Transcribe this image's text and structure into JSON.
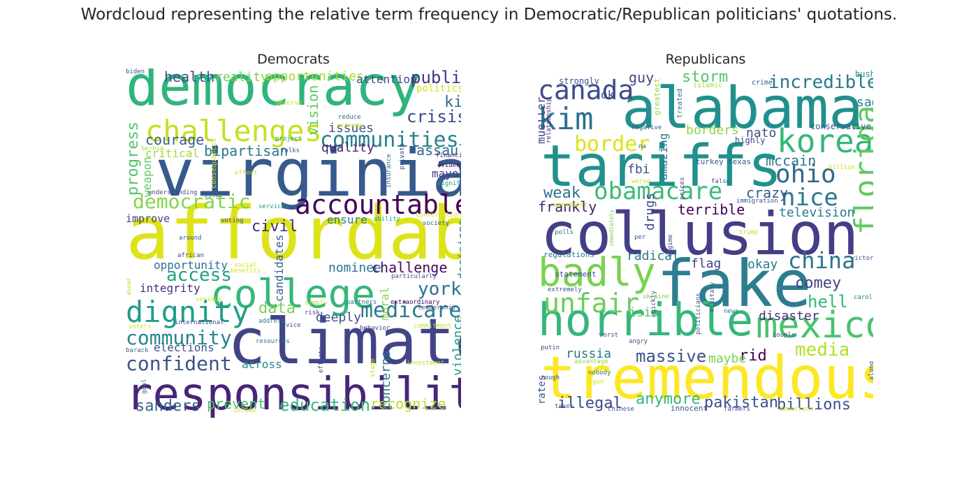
{
  "figure": {
    "title": "Wordcloud representing the relative term frequency in Democratic/Republican politicians' quotations."
  },
  "clouds": [
    {
      "title": "Democrats",
      "words": [
        {
          "text": "democracy",
          "color": "#2fb47c"
        },
        {
          "text": "virginia",
          "color": "#375a8c"
        },
        {
          "text": "affordable",
          "color": "#dde318"
        },
        {
          "text": "climate",
          "color": "#414487"
        },
        {
          "text": "responsibility",
          "color": "#482576"
        },
        {
          "text": "college",
          "color": "#35b779"
        },
        {
          "text": "challenges",
          "color": "#c5e021"
        },
        {
          "text": "accountable",
          "color": "#440154"
        },
        {
          "text": "dignity",
          "color": "#1f9e89"
        },
        {
          "text": "communities",
          "color": "#26828e"
        },
        {
          "text": "medicare",
          "color": "#2a788e"
        },
        {
          "text": "community",
          "color": "#25858e"
        },
        {
          "text": "confident",
          "color": "#3b528b"
        },
        {
          "text": "democratic",
          "color": "#84d44b"
        },
        {
          "text": "education",
          "color": "#3aba76"
        },
        {
          "text": "sanders",
          "color": "#33638d"
        },
        {
          "text": "access",
          "color": "#1fa287"
        },
        {
          "text": "york",
          "color": "#2c718e"
        },
        {
          "text": "crisis",
          "color": "#3e4989"
        },
        {
          "text": "public",
          "color": "#46337e"
        },
        {
          "text": "kids",
          "color": "#2e6e8e"
        },
        {
          "text": "assault",
          "color": "#31688e"
        },
        {
          "text": "courage",
          "color": "#355f8d"
        },
        {
          "text": "health",
          "color": "#3e4a89"
        },
        {
          "text": "bipartisan",
          "color": "#29798e"
        },
        {
          "text": "challenge",
          "color": "#450559"
        },
        {
          "text": "civil",
          "color": "#472c7a"
        },
        {
          "text": "data",
          "color": "#7ad151"
        },
        {
          "text": "prevent",
          "color": "#4ac16d"
        },
        {
          "text": "recognize",
          "color": "#b5de2b"
        },
        {
          "text": "opportunities",
          "color": "#a0da39"
        },
        {
          "text": "progress",
          "color": "#52c569"
        },
        {
          "text": "vision",
          "color": "#5ec962"
        },
        {
          "text": "reality",
          "color": "#73d056"
        },
        {
          "text": "attention",
          "color": "#3f4788"
        },
        {
          "text": "politics",
          "color": "#d2e21b"
        },
        {
          "text": "issues",
          "color": "#3b528b"
        },
        {
          "text": "quality",
          "color": "#481b6d"
        },
        {
          "text": "critical",
          "color": "#a2da37"
        },
        {
          "text": "mayor",
          "color": "#433e85"
        },
        {
          "text": "improve",
          "color": "#404387"
        },
        {
          "text": "opportunity",
          "color": "#2d708e"
        },
        {
          "text": "integrity",
          "color": "#472d7b"
        },
        {
          "text": "nominee",
          "color": "#2a768e"
        },
        {
          "text": "deeply",
          "color": "#3b528b"
        },
        {
          "text": "elections",
          "color": "#3a538b"
        },
        {
          "text": "across",
          "color": "#238a8d"
        },
        {
          "text": "ensure",
          "color": "#297a8e"
        },
        {
          "text": "decisions",
          "color": "#2c728e"
        },
        {
          "text": "violence",
          "color": "#1f988b"
        },
        {
          "text": "concerns",
          "color": "#2b758e"
        },
        {
          "text": "candidates",
          "color": "#355e8d"
        },
        {
          "text": "moral",
          "color": "#86d549"
        },
        {
          "text": "weapon",
          "color": "#5cc863"
        },
        {
          "text": "biden",
          "color": "#3b528b"
        },
        {
          "text": "deserve",
          "color": "#c8e020"
        },
        {
          "text": "reduce",
          "color": "#31688e"
        },
        {
          "text": "economy",
          "color": "#ccdf1a"
        },
        {
          "text": "consequences",
          "color": "#c8e020"
        },
        {
          "text": "bernie",
          "color": "#b0dd2f"
        },
        {
          "text": "project",
          "color": "#1f9e89"
        },
        {
          "text": "folks",
          "color": "#3b528b"
        },
        {
          "text": "insurance",
          "color": "#2c718e"
        },
        {
          "text": "private",
          "color": "#3f4889"
        },
        {
          "text": "financial",
          "color": "#472f7d"
        },
        {
          "text": "evidence",
          "color": "#440154"
        },
        {
          "text": "significant",
          "color": "#1f9e89"
        },
        {
          "text": "understanding",
          "color": "#3e4c8a"
        },
        {
          "text": "issue",
          "color": "#355f8d"
        },
        {
          "text": "effort",
          "color": "#c2df23"
        },
        {
          "text": "services",
          "color": "#1e9c89"
        },
        {
          "text": "voting",
          "color": "#3f4889"
        },
        {
          "text": "ability",
          "color": "#1fa088"
        },
        {
          "text": "conversation",
          "color": "#dae319"
        },
        {
          "text": "society",
          "color": "#365c8d"
        },
        {
          "text": "around",
          "color": "#38598c"
        },
        {
          "text": "african",
          "color": "#3e4a89"
        },
        {
          "text": "social",
          "color": "#c8e020"
        },
        {
          "text": "benefits",
          "color": "#d2e21b"
        },
        {
          "text": "particularly",
          "color": "#3b528b"
        },
        {
          "text": "ahead",
          "color": "#c2df23"
        },
        {
          "text": "serious",
          "color": "#c8e020"
        },
        {
          "text": "simply",
          "color": "#b5de2b"
        },
        {
          "text": "partners",
          "color": "#2c718e"
        },
        {
          "text": "extraordinary",
          "color": "#440154"
        },
        {
          "text": "risk",
          "color": "#3e4a89"
        },
        {
          "text": "international",
          "color": "#3e4a89"
        },
        {
          "text": "address",
          "color": "#2a788e"
        },
        {
          "text": "behavior",
          "color": "#404387"
        },
        {
          "text": "leadership",
          "color": "#3a538b"
        },
        {
          "text": "commitment",
          "color": "#c2df23"
        },
        {
          "text": "voters",
          "color": "#dde318"
        },
        {
          "text": "resources",
          "color": "#2d708e"
        },
        {
          "text": "vice",
          "color": "#3b528b"
        },
        {
          "text": "barack",
          "color": "#31688e"
        },
        {
          "text": "investment",
          "color": "#c2df23"
        },
        {
          "text": "efforts",
          "color": "#3e4a89"
        },
        {
          "text": "stage",
          "color": "#c8e020"
        },
        {
          "text": "goal",
          "color": "#2a788e"
        },
        {
          "text": "income",
          "color": "#c2df23"
        }
      ]
    },
    {
      "title": "Republicans",
      "words": [
        {
          "text": "alabama",
          "color": "#21908d"
        },
        {
          "text": "tariffs",
          "color": "#21918c"
        },
        {
          "text": "collusion",
          "color": "#433e85"
        },
        {
          "text": "fake",
          "color": "#2c7e8e"
        },
        {
          "text": "tremendous",
          "color": "#fde725"
        },
        {
          "text": "horrible",
          "color": "#35b779"
        },
        {
          "text": "mexico",
          "color": "#4ac16d"
        },
        {
          "text": "kim",
          "color": "#2c718e"
        },
        {
          "text": "korea",
          "color": "#35b779"
        },
        {
          "text": "florida",
          "color": "#5ec962"
        },
        {
          "text": "badly",
          "color": "#7ad151"
        },
        {
          "text": "canada",
          "color": "#3e4a89"
        },
        {
          "text": "obamacare",
          "color": "#3bbb75"
        },
        {
          "text": "china",
          "color": "#2c728e"
        },
        {
          "text": "ohio",
          "color": "#31688e"
        },
        {
          "text": "nice",
          "color": "#2a788e"
        },
        {
          "text": "unfair",
          "color": "#6ccd5a"
        },
        {
          "text": "border",
          "color": "#dde318"
        },
        {
          "text": "incredible",
          "color": "#2a788e"
        },
        {
          "text": "media",
          "color": "#b5de2b"
        },
        {
          "text": "massive",
          "color": "#3b528b"
        },
        {
          "text": "illegal",
          "color": "#3e4989"
        },
        {
          "text": "anymore",
          "color": "#35b779"
        },
        {
          "text": "pakistan",
          "color": "#3b528b"
        },
        {
          "text": "billions",
          "color": "#3b528b"
        },
        {
          "text": "comey",
          "color": "#404387"
        },
        {
          "text": "hell",
          "color": "#35b779"
        },
        {
          "text": "weak",
          "color": "#2c728e"
        },
        {
          "text": "frankly",
          "color": "#481b6d"
        },
        {
          "text": "terrible",
          "color": "#440154"
        },
        {
          "text": "crazy",
          "color": "#38598c"
        },
        {
          "text": "storm",
          "color": "#52c569"
        },
        {
          "text": "guy",
          "color": "#3e4a89"
        },
        {
          "text": "borders",
          "color": "#8fd744"
        },
        {
          "text": "nato",
          "color": "#3b528b"
        },
        {
          "text": "mccain",
          "color": "#2a788e"
        },
        {
          "text": "television",
          "color": "#2a788e"
        },
        {
          "text": "okay",
          "color": "#2a788e"
        },
        {
          "text": "flag",
          "color": "#404387"
        },
        {
          "text": "radical",
          "color": "#2a788e"
        },
        {
          "text": "disaster",
          "color": "#472c7a"
        },
        {
          "text": "isis",
          "color": "#52c569"
        },
        {
          "text": "russia",
          "color": "#2a788e"
        },
        {
          "text": "rid",
          "color": "#440154"
        },
        {
          "text": "maybe",
          "color": "#7ad151"
        },
        {
          "text": "fbi",
          "color": "#3b528b"
        },
        {
          "text": "amazing",
          "color": "#2a788e"
        },
        {
          "text": "drugs",
          "color": "#3e4989"
        },
        {
          "text": "mueller",
          "color": "#414487"
        },
        {
          "text": "strongly",
          "color": "#3b528b"
        },
        {
          "text": "ok",
          "color": "#3b528b"
        },
        {
          "text": "greatest",
          "color": "#8fd744"
        },
        {
          "text": "treated",
          "color": "#2c728e"
        },
        {
          "text": "islamic",
          "color": "#a0da39"
        },
        {
          "text": "crime",
          "color": "#3b528b"
        },
        {
          "text": "sad",
          "color": "#2a788e"
        },
        {
          "text": "bush",
          "color": "#21918c"
        },
        {
          "text": "conservative",
          "color": "#3b528b"
        },
        {
          "text": "highly",
          "color": "#414487"
        },
        {
          "text": "relationship",
          "color": "#482576"
        },
        {
          "text": "negative",
          "color": "#3b528b"
        },
        {
          "text": "na",
          "color": "#3b528b"
        },
        {
          "text": "turkey",
          "color": "#3b528b"
        },
        {
          "text": "texas",
          "color": "#3b528b"
        },
        {
          "text": "billion",
          "color": "#d2e21b"
        },
        {
          "text": "prices",
          "color": "#414487"
        },
        {
          "text": "worse",
          "color": "#c8e020"
        },
        {
          "text": "false",
          "color": "#3b528b"
        },
        {
          "text": "immigration",
          "color": "#3b528b"
        },
        {
          "text": "amendment",
          "color": "#c8e020"
        },
        {
          "text": "polls",
          "color": "#2a788e"
        },
        {
          "text": "immediately",
          "color": "#7ad151"
        },
        {
          "text": "per",
          "color": "#3b528b"
        },
        {
          "text": "regime",
          "color": "#414487"
        },
        {
          "text": "trump",
          "color": "#c8e020"
        },
        {
          "text": "regulations",
          "color": "#2a788e"
        },
        {
          "text": "statement",
          "color": "#3b528b"
        },
        {
          "text": "victory",
          "color": "#3b528b"
        },
        {
          "text": "extremely",
          "color": "#3b528b"
        },
        {
          "text": "ukraine",
          "color": "#7ad151"
        },
        {
          "text": "politicians",
          "color": "#3b528b"
        },
        {
          "text": "carolina",
          "color": "#2a788e"
        },
        {
          "text": "news",
          "color": "#2a788e"
        },
        {
          "text": "quickly",
          "color": "#3b528b"
        },
        {
          "text": "military",
          "color": "#3b528b"
        },
        {
          "text": "worst",
          "color": "#414487"
        },
        {
          "text": "angry",
          "color": "#3b528b"
        },
        {
          "text": "putin",
          "color": "#3b528b"
        },
        {
          "text": "couple",
          "color": "#3b528b"
        },
        {
          "text": "along",
          "color": "#3b528b"
        },
        {
          "text": "rates",
          "color": "#3b528b"
        },
        {
          "text": "advantage",
          "color": "#8fd744"
        },
        {
          "text": "nobody",
          "color": "#2a788e"
        },
        {
          "text": "tough",
          "color": "#3b528b"
        },
        {
          "text": "gon",
          "color": "#c8e020"
        },
        {
          "text": "taxes",
          "color": "#3b528b"
        },
        {
          "text": "chinese",
          "color": "#3b528b"
        },
        {
          "text": "innocent",
          "color": "#3b528b"
        },
        {
          "text": "farmers",
          "color": "#3b528b"
        },
        {
          "text": "democrats",
          "color": "#c8e020"
        }
      ]
    }
  ]
}
